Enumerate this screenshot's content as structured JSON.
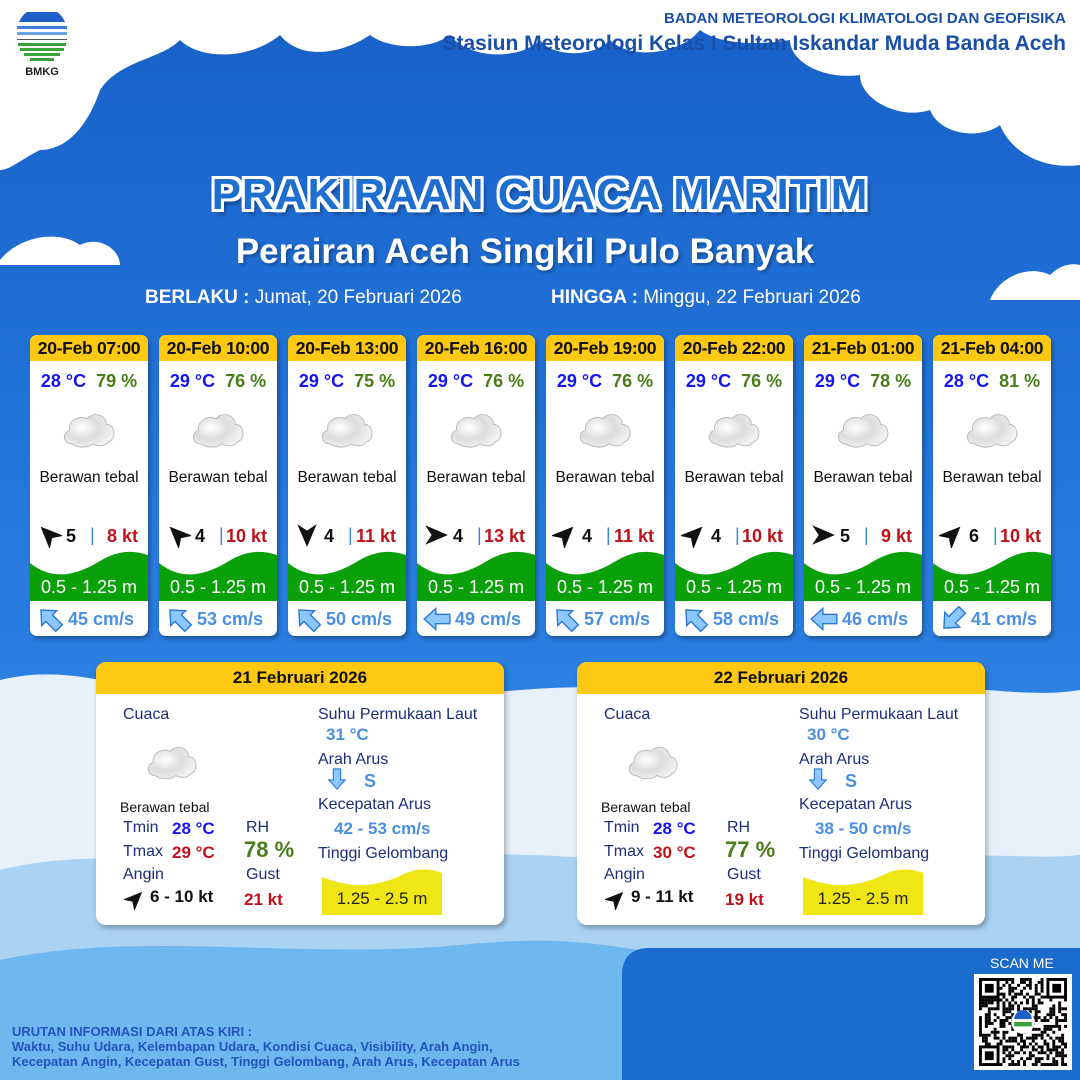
{
  "header": {
    "org": "BADAN METEOROLOGI KLIMATOLOGI DAN GEOFISIKA",
    "station": "Stasiun Meteorologi Kelas I Sultan Iskandar Muda Banda Aceh",
    "logo_text": "BMKG"
  },
  "title": "PRAKIRAAN CUACA MARITIM",
  "subtitle": "Perairan Aceh Singkil Pulo Banyak",
  "validity": {
    "from_label": "BERLAKU :",
    "from": "Jumat, 20 Februari 2026",
    "to_label": "HINGGA :",
    "to": "Minggu, 22 Februari 2026"
  },
  "colors": {
    "header_yellow": "#fcc812",
    "wave_green": "#0aa00a",
    "wave_yellow": "#f0e614",
    "temp_blue": "#1515f0",
    "rh_green": "#4a7d18",
    "gust_red": "#c0101a",
    "current_blue": "#4a8fe0"
  },
  "forecasts": [
    {
      "time": "20-Feb 07:00",
      "temp": "28 °C",
      "rh": "79 %",
      "icon": "cloud-icon",
      "weather": "Berawan tebal",
      "wind_dir": "NW",
      "wind_speed": "5",
      "sep": "|",
      "gust": "8 kt",
      "wave": "0.5 - 1.25 m",
      "current_dir": "NW",
      "current_speed": "45 cm/s"
    },
    {
      "time": "20-Feb 10:00",
      "temp": "29 °C",
      "rh": "76 %",
      "icon": "cloud-icon",
      "weather": "Berawan tebal",
      "wind_dir": "NW",
      "wind_speed": "4",
      "sep": "|",
      "gust": "10 kt",
      "wave": "0.5 - 1.25 m",
      "current_dir": "NW",
      "current_speed": "53 cm/s"
    },
    {
      "time": "20-Feb 13:00",
      "temp": "29 °C",
      "rh": "75 %",
      "icon": "cloud-icon",
      "weather": "Berawan tebal",
      "wind_dir": "S",
      "wind_speed": "4",
      "sep": "|",
      "gust": "11 kt",
      "wave": "0.5 - 1.25 m",
      "current_dir": "NW",
      "current_speed": "50 cm/s"
    },
    {
      "time": "20-Feb 16:00",
      "temp": "29 °C",
      "rh": "76 %",
      "icon": "cloud-icon",
      "weather": "Berawan tebal",
      "wind_dir": "E",
      "wind_speed": "4",
      "sep": "|",
      "gust": "13 kt",
      "wave": "0.5 - 1.25 m",
      "current_dir": "W",
      "current_speed": "49 cm/s"
    },
    {
      "time": "20-Feb 19:00",
      "temp": "29 °C",
      "rh": "76 %",
      "icon": "cloud-icon",
      "weather": "Berawan tebal",
      "wind_dir": "NE",
      "wind_speed": "4",
      "sep": "|",
      "gust": "11 kt",
      "wave": "0.5 - 1.25 m",
      "current_dir": "NW",
      "current_speed": "57 cm/s"
    },
    {
      "time": "20-Feb 22:00",
      "temp": "29 °C",
      "rh": "76 %",
      "icon": "cloud-icon",
      "weather": "Berawan tebal",
      "wind_dir": "NE",
      "wind_speed": "4",
      "sep": "|",
      "gust": "10 kt",
      "wave": "0.5 - 1.25 m",
      "current_dir": "NW",
      "current_speed": "58 cm/s"
    },
    {
      "time": "21-Feb 01:00",
      "temp": "29 °C",
      "rh": "78 %",
      "icon": "cloud-icon",
      "weather": "Berawan tebal",
      "wind_dir": "E",
      "wind_speed": "5",
      "sep": "|",
      "gust": "9 kt",
      "wave": "0.5 - 1.25 m",
      "current_dir": "W",
      "current_speed": "46 cm/s"
    },
    {
      "time": "21-Feb 04:00",
      "temp": "28 °C",
      "rh": "81 %",
      "icon": "cloud-icon",
      "weather": "Berawan tebal",
      "wind_dir": "NE",
      "wind_speed": "6",
      "sep": "|",
      "gust": "10 kt",
      "wave": "0.5 - 1.25 m",
      "current_dir": "SW",
      "current_speed": "41 cm/s"
    }
  ],
  "daily": [
    {
      "date": "21 Februari 2026",
      "weather_label": "Cuaca",
      "weather": "Berawan tebal",
      "tmin_label": "Tmin",
      "tmin": "28 °C",
      "tmax_label": "Tmax",
      "tmax": "29 °C",
      "rh_label": "RH",
      "rh": "78 %",
      "wind_label": "Angin",
      "wind_dir": "NE",
      "wind": "6  - 10 kt",
      "gust_label": "Gust",
      "gust": "21 kt",
      "sst_label": "Suhu Permukaan Laut",
      "sst": "31 °C",
      "cur_dir_label": "Arah Arus",
      "cur_dir": "S",
      "cur_speed_label": "Kecepatan Arus",
      "cur_speed": "42  - 53 cm/s",
      "wave_label": "Tinggi Gelombang",
      "wave": "1.25 - 2.5 m"
    },
    {
      "date": "22 Februari 2026",
      "weather_label": "Cuaca",
      "weather": "Berawan tebal",
      "tmin_label": "Tmin",
      "tmin": "28 °C",
      "tmax_label": "Tmax",
      "tmax": "30 °C",
      "rh_label": "RH",
      "rh": "77 %",
      "wind_label": "Angin",
      "wind_dir": "NE",
      "wind": "9  - 11 kt",
      "gust_label": "Gust",
      "gust": "19 kt",
      "sst_label": "Suhu Permukaan Laut",
      "sst": "30 °C",
      "cur_dir_label": "Arah Arus",
      "cur_dir": "S",
      "cur_speed_label": "Kecepatan Arus",
      "cur_speed": "38  -  50 cm/s",
      "wave_label": "Tinggi Gelombang",
      "wave": "1.25 - 2.5 m"
    }
  ],
  "footer": {
    "line1": "URUTAN INFORMASI DARI ATAS KIRI :",
    "line2": "Waktu, Suhu Udara, Kelembapan Udara, Kondisi Cuaca, Visibility, Arah Angin,",
    "line3": "Kecepatan Angin, Kecepatan Gust, Tinggi Gelombang, Arah Arus, Kecepatan Arus",
    "scan": "SCAN ME"
  }
}
